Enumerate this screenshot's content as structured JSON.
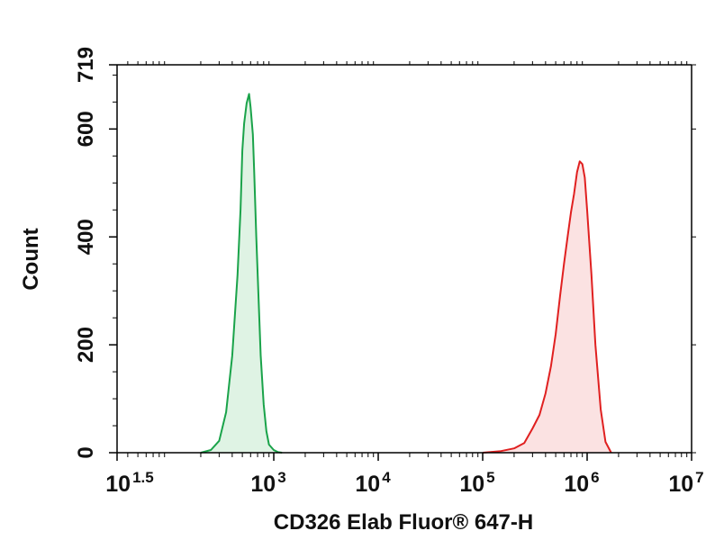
{
  "chart_data": {
    "type": "area",
    "xlabel": "CD326 Elab Fluor® 647-H",
    "ylabel": "Count",
    "x_scale": "log10",
    "xlim": [
      31.6,
      10000000
    ],
    "ylim": [
      0,
      719
    ],
    "x_ticks": [
      {
        "value": 31.6,
        "base": "10",
        "exp": "1.5"
      },
      {
        "value": 1000,
        "base": "10",
        "exp": "3"
      },
      {
        "value": 10000,
        "base": "10",
        "exp": "4"
      },
      {
        "value": 100000,
        "base": "10",
        "exp": "5"
      },
      {
        "value": 1000000,
        "base": "10",
        "exp": "6"
      },
      {
        "value": 10000000,
        "base": "10",
        "exp": "7"
      }
    ],
    "y_ticks": [
      {
        "value": 0,
        "label": "0"
      },
      {
        "value": 200,
        "label": "200"
      },
      {
        "value": 400,
        "label": "400"
      },
      {
        "value": 600,
        "label": "600"
      },
      {
        "value": 719,
        "label": "719"
      }
    ],
    "grid": false,
    "series": [
      {
        "color": "#1aa34a",
        "fill": "#dff3e4",
        "x": [
          200,
          250,
          300,
          350,
          400,
          450,
          480,
          500,
          520,
          550,
          580,
          600,
          630,
          650,
          680,
          720,
          750,
          800,
          850,
          900,
          1000,
          1100,
          1200
        ],
        "y": [
          0,
          5,
          22,
          75,
          180,
          330,
          450,
          560,
          610,
          648,
          665,
          640,
          590,
          520,
          400,
          270,
          180,
          90,
          40,
          15,
          5,
          1,
          0
        ]
      },
      {
        "color": "#e02020",
        "fill": "#fbe2e2",
        "x": [
          100000,
          150000,
          200000,
          250000,
          300000,
          350000,
          400000,
          450000,
          500000,
          550000,
          600000,
          650000,
          700000,
          750000,
          800000,
          850000,
          900000,
          950000,
          1000000,
          1100000,
          1200000,
          1350000,
          1500000,
          1700000
        ],
        "y": [
          0,
          3,
          8,
          18,
          45,
          70,
          110,
          160,
          220,
          290,
          350,
          400,
          445,
          480,
          520,
          540,
          535,
          510,
          450,
          330,
          200,
          80,
          20,
          0
        ]
      }
    ]
  }
}
